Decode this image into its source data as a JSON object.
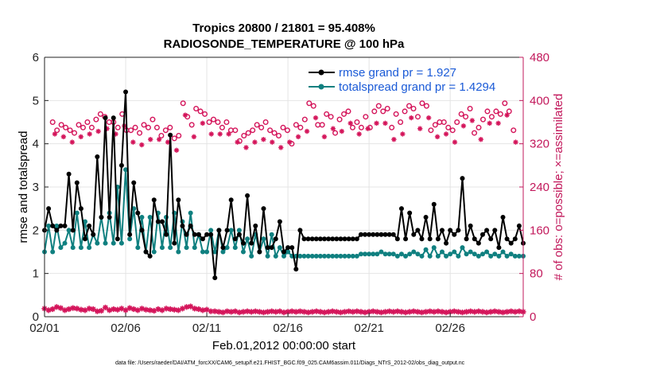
{
  "chart_data": {
    "type": "line",
    "title_line1": "Tropics 20800 / 21801 = 95.408%",
    "title_line2": "RADIOSONDE_TEMPERATURE @ 100 hPa",
    "xlabel": "Feb.01,2012 00:00:00 start",
    "ylabel_left": "rmse and totalspread",
    "ylabel_right": "# of obs: o=possible; ×=assimilated",
    "footer": "data file: /Users/raeder/DAI/ATM_forcXX/CAM6_setup/f.e21.FHIST_BGC.f09_025.CAM6assim.011/Diags_NTrS_2012-02/obs_diag_output.nc",
    "xlim": [
      0,
      29.5
    ],
    "ylim_left": [
      0,
      6
    ],
    "ylim_right": [
      0,
      480
    ],
    "x_ticks": [
      0,
      5,
      10,
      15,
      20,
      25
    ],
    "x_tick_labels": [
      "02/01",
      "02/06",
      "02/11",
      "02/16",
      "02/21",
      "02/26"
    ],
    "y_left_ticks": [
      "0",
      "1",
      "2",
      "3",
      "4",
      "5",
      "6"
    ],
    "y_right_ticks": [
      "0",
      "80",
      "160",
      "240",
      "320",
      "400",
      "480"
    ],
    "legend": [
      {
        "label": "rmse grand pr = 1.927",
        "color": "#000000"
      },
      {
        "label": "totalspread grand pr = 1.4294",
        "color": "#108080"
      }
    ],
    "colors": {
      "rmse": "#000000",
      "spread": "#108080",
      "obs": "#d4145a",
      "axis_right": "#c2185b",
      "legend_text": "#1a5ad7",
      "grid": "#e4e4e4"
    },
    "step_days": 0.25,
    "series": [
      {
        "name": "rmse",
        "x_start": 0,
        "values": [
          2.0,
          2.5,
          2.1,
          2.0,
          2.1,
          2.1,
          3.3,
          2.0,
          3.1,
          2.5,
          1.8,
          2.1,
          1.9,
          3.7,
          2.3,
          4.6,
          2.3,
          4.6,
          1.8,
          3.5,
          5.2,
          1.9,
          3.1,
          2.4,
          2.0,
          1.5,
          1.4,
          2.7,
          2.2,
          2.2,
          1.9,
          4.2,
          1.7,
          2.7,
          2.1,
          1.9,
          2.1,
          1.9,
          1.9,
          1.8,
          1.9,
          1.9,
          0.9,
          2.0,
          1.6,
          2.0,
          2.7,
          1.8,
          1.9,
          1.7,
          2.8,
          1.7,
          2.1,
          1.5,
          2.5,
          1.6,
          1.6,
          1.8,
          2.2,
          1.5,
          1.6,
          1.6,
          1.1,
          2.0,
          1.8,
          1.8,
          1.8,
          1.8,
          1.8,
          1.8,
          1.8,
          1.8,
          1.8,
          1.8,
          1.8,
          1.8,
          1.8,
          1.8,
          1.9,
          1.9,
          1.9,
          1.9,
          1.9,
          1.9,
          1.9,
          1.9,
          1.9,
          1.8,
          2.5,
          1.8,
          2.4,
          1.9,
          2.0,
          1.8,
          2.3,
          1.8,
          2.6,
          1.8,
          2.0,
          1.7,
          2.0,
          1.9,
          2.0,
          3.2,
          1.8,
          2.1,
          1.8,
          1.7,
          1.9,
          2.0,
          1.8,
          2.0,
          1.6,
          2.3,
          1.8,
          1.7,
          1.8,
          2.1,
          1.7,
          1.9,
          2.0,
          2.4,
          1.9,
          2.4,
          1.8,
          1.9,
          2.0,
          1.9,
          2.2,
          1.7,
          1.9,
          2.0,
          1.8,
          2.3,
          2.2,
          1.9,
          1.8,
          1.8
        ]
      },
      {
        "name": "totalspread",
        "x_start": 0,
        "values": [
          1.5,
          2.1,
          1.5,
          2.1,
          1.6,
          1.7,
          2.0,
          1.6,
          2.4,
          1.6,
          2.2,
          1.6,
          1.9,
          1.7,
          2.3,
          1.7,
          2.4,
          1.7,
          3.0,
          1.7,
          3.4,
          1.8,
          2.5,
          1.6,
          2.3,
          1.5,
          2.3,
          1.5,
          2.4,
          1.6,
          2.3,
          1.6,
          2.4,
          1.5,
          2.2,
          1.6,
          2.4,
          1.6,
          1.9,
          1.5,
          1.5,
          2.0,
          1.5,
          2.0,
          1.5,
          1.6,
          2.0,
          1.6,
          2.0,
          1.5,
          1.8,
          1.4,
          1.9,
          1.5,
          1.8,
          1.4,
          1.9,
          1.4,
          1.6,
          1.4,
          1.5,
          1.4,
          1.4,
          1.4,
          1.4,
          1.4,
          1.4,
          1.4,
          1.4,
          1.4,
          1.4,
          1.4,
          1.4,
          1.4,
          1.4,
          1.4,
          1.4,
          1.4,
          1.45,
          1.45,
          1.45,
          1.45,
          1.45,
          1.5,
          1.45,
          1.45,
          1.45,
          1.4,
          1.45,
          1.4,
          1.45,
          1.5,
          1.45,
          1.4,
          1.55,
          1.4,
          1.6,
          1.4,
          1.5,
          1.4,
          1.45,
          1.5,
          1.4,
          1.6,
          1.45,
          1.5,
          1.45,
          1.4,
          1.45,
          1.5,
          1.4,
          1.45,
          1.4,
          1.5,
          1.4,
          1.45,
          1.4,
          1.4,
          1.4,
          1.45,
          1.4,
          1.5,
          1.4,
          1.4,
          1.45,
          1.45,
          1.5,
          1.4,
          1.45,
          1.5,
          1.4,
          1.55,
          1.5,
          1.45,
          1.6,
          1.6
        ]
      },
      {
        "name": "obs_possible",
        "x_start": 0.5,
        "values": [
          360,
          345,
          355,
          350,
          345,
          340,
          355,
          350,
          360,
          350,
          365,
          375,
          370,
          360,
          360,
          350,
          375,
          345,
          345,
          350,
          340,
          355,
          350,
          365,
          350,
          335,
          345,
          350,
          330,
          335,
          395,
          370,
          355,
          385,
          380,
          375,
          360,
          365,
          360,
          350,
          360,
          345,
          345,
          325,
          335,
          340,
          345,
          355,
          350,
          360,
          345,
          340,
          335,
          350,
          345,
          320,
          355,
          350,
          365,
          395,
          390,
          355,
          355,
          375,
          370,
          340,
          365,
          375,
          380,
          350,
          360,
          350,
          370,
          350,
          380,
          390,
          380,
          385,
          350,
          375,
          360,
          380,
          390,
          385,
          370,
          395,
          390,
          345,
          355,
          360,
          360,
          350,
          345,
          360,
          375,
          370,
          385,
          340,
          350,
          365,
          380,
          370,
          380,
          375,
          395,
          380,
          345
        ]
      },
      {
        "name": "obs_assimilated",
        "x_start": 0,
        "values": [
          15,
          12,
          14,
          18,
          16,
          12,
          14,
          16,
          15,
          13,
          12,
          15,
          14,
          10,
          11,
          17,
          12,
          14,
          13,
          15,
          12,
          16,
          14,
          12,
          15,
          13,
          12,
          11,
          14,
          12,
          15,
          14,
          13,
          12,
          15,
          18,
          19,
          15,
          14,
          12,
          13,
          10,
          10,
          9,
          8,
          10,
          9,
          10,
          8,
          9,
          10,
          9,
          10,
          9,
          8,
          9,
          10,
          9,
          10,
          8,
          9,
          10,
          9,
          10,
          9,
          8,
          9,
          10,
          9,
          8,
          9,
          10,
          9,
          8,
          9,
          10,
          9,
          10,
          9,
          8,
          9,
          10,
          9,
          8,
          9,
          10,
          9,
          10,
          9,
          8,
          9,
          10,
          9,
          8,
          9,
          10,
          9,
          10,
          9,
          8,
          9,
          10,
          9,
          8,
          9,
          10,
          9,
          10,
          9,
          8,
          9,
          10,
          9,
          8,
          9,
          10,
          9,
          10,
          9,
          8,
          9,
          10,
          9,
          8,
          9,
          10,
          9,
          10,
          9,
          8,
          9,
          10,
          9,
          8,
          9,
          9,
          6,
          2
        ]
      }
    ]
  }
}
